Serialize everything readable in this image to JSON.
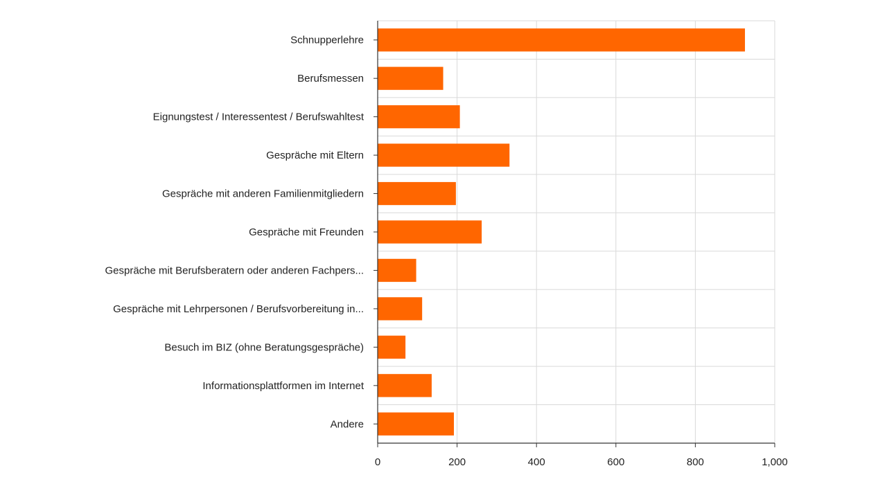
{
  "chart_data": {
    "type": "bar",
    "orientation": "horizontal",
    "categories": [
      "Schnupperlehre",
      "Berufsmessen",
      "Eignungstest / Interessentest / Berufswahltest",
      "Gespräche mit Eltern",
      "Gespräche mit anderen Familienmitgliedern",
      "Gespräche mit Freunden",
      "Gespräche mit Berufsberatern oder anderen Fachpers...",
      "Gespräche mit Lehrpersonen / Berufsvorbereitung in...",
      "Besuch im BIZ (ohne Beratungsgespräche)",
      "Informationsplattformen im Internet",
      "Andere"
    ],
    "values": [
      925,
      165,
      207,
      332,
      197,
      262,
      97,
      112,
      70,
      136,
      192
    ],
    "xlim": [
      0,
      1000
    ],
    "xticks": [
      0,
      200,
      400,
      600,
      800,
      1000
    ],
    "xtick_labels": [
      "0",
      "200",
      "400",
      "600",
      "800",
      "1,000"
    ],
    "title": "",
    "xlabel": "",
    "ylabel": "",
    "grid": true,
    "bar_color": "#ff6600",
    "grid_color": "#d9d9d9",
    "axis_color": "#333333",
    "text_color": "#222222"
  }
}
